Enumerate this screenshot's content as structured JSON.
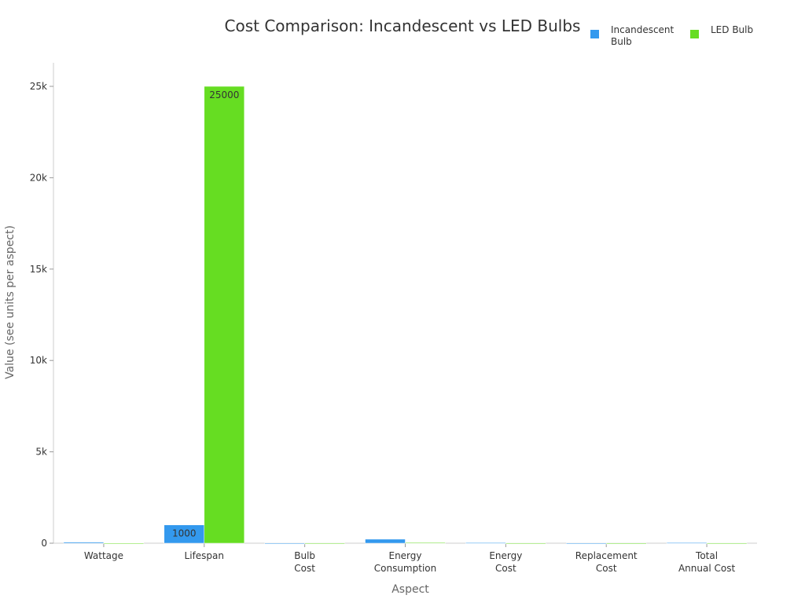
{
  "chart_data": {
    "type": "bar",
    "title": "Cost Comparison: Incandescent vs LED Bulbs",
    "xlabel": "Aspect",
    "ylabel": "Value (see units per aspect)",
    "categories": [
      [
        "Wattage"
      ],
      [
        "Lifespan"
      ],
      [
        "Bulb",
        "Cost"
      ],
      [
        "Energy",
        "Consumption"
      ],
      [
        "Energy",
        "Cost"
      ],
      [
        "Replacement",
        "Cost"
      ],
      [
        "Total",
        "Annual Cost"
      ]
    ],
    "series": [
      {
        "name": "Incandescent Bulb",
        "legend_lines": [
          "Incandescent",
          "Bulb"
        ],
        "color": "#3399ee",
        "values": [
          60,
          1000,
          1,
          219,
          26,
          1,
          27
        ]
      },
      {
        "name": "LED Bulb",
        "legend_lines": [
          "LED Bulb"
        ],
        "color": "#66dd22",
        "values": [
          10,
          25000,
          3,
          37,
          4,
          0.1,
          5
        ]
      }
    ],
    "ylim": [
      0,
      25000
    ],
    "yticks": [
      0,
      5000,
      10000,
      15000,
      20000,
      25000
    ],
    "ytick_labels": [
      "0",
      "5k",
      "10k",
      "15k",
      "20k",
      "25k"
    ],
    "data_labels_shown": {
      "1": [
        "1000",
        "25000"
      ]
    },
    "grid": false,
    "legend": "top-right"
  }
}
